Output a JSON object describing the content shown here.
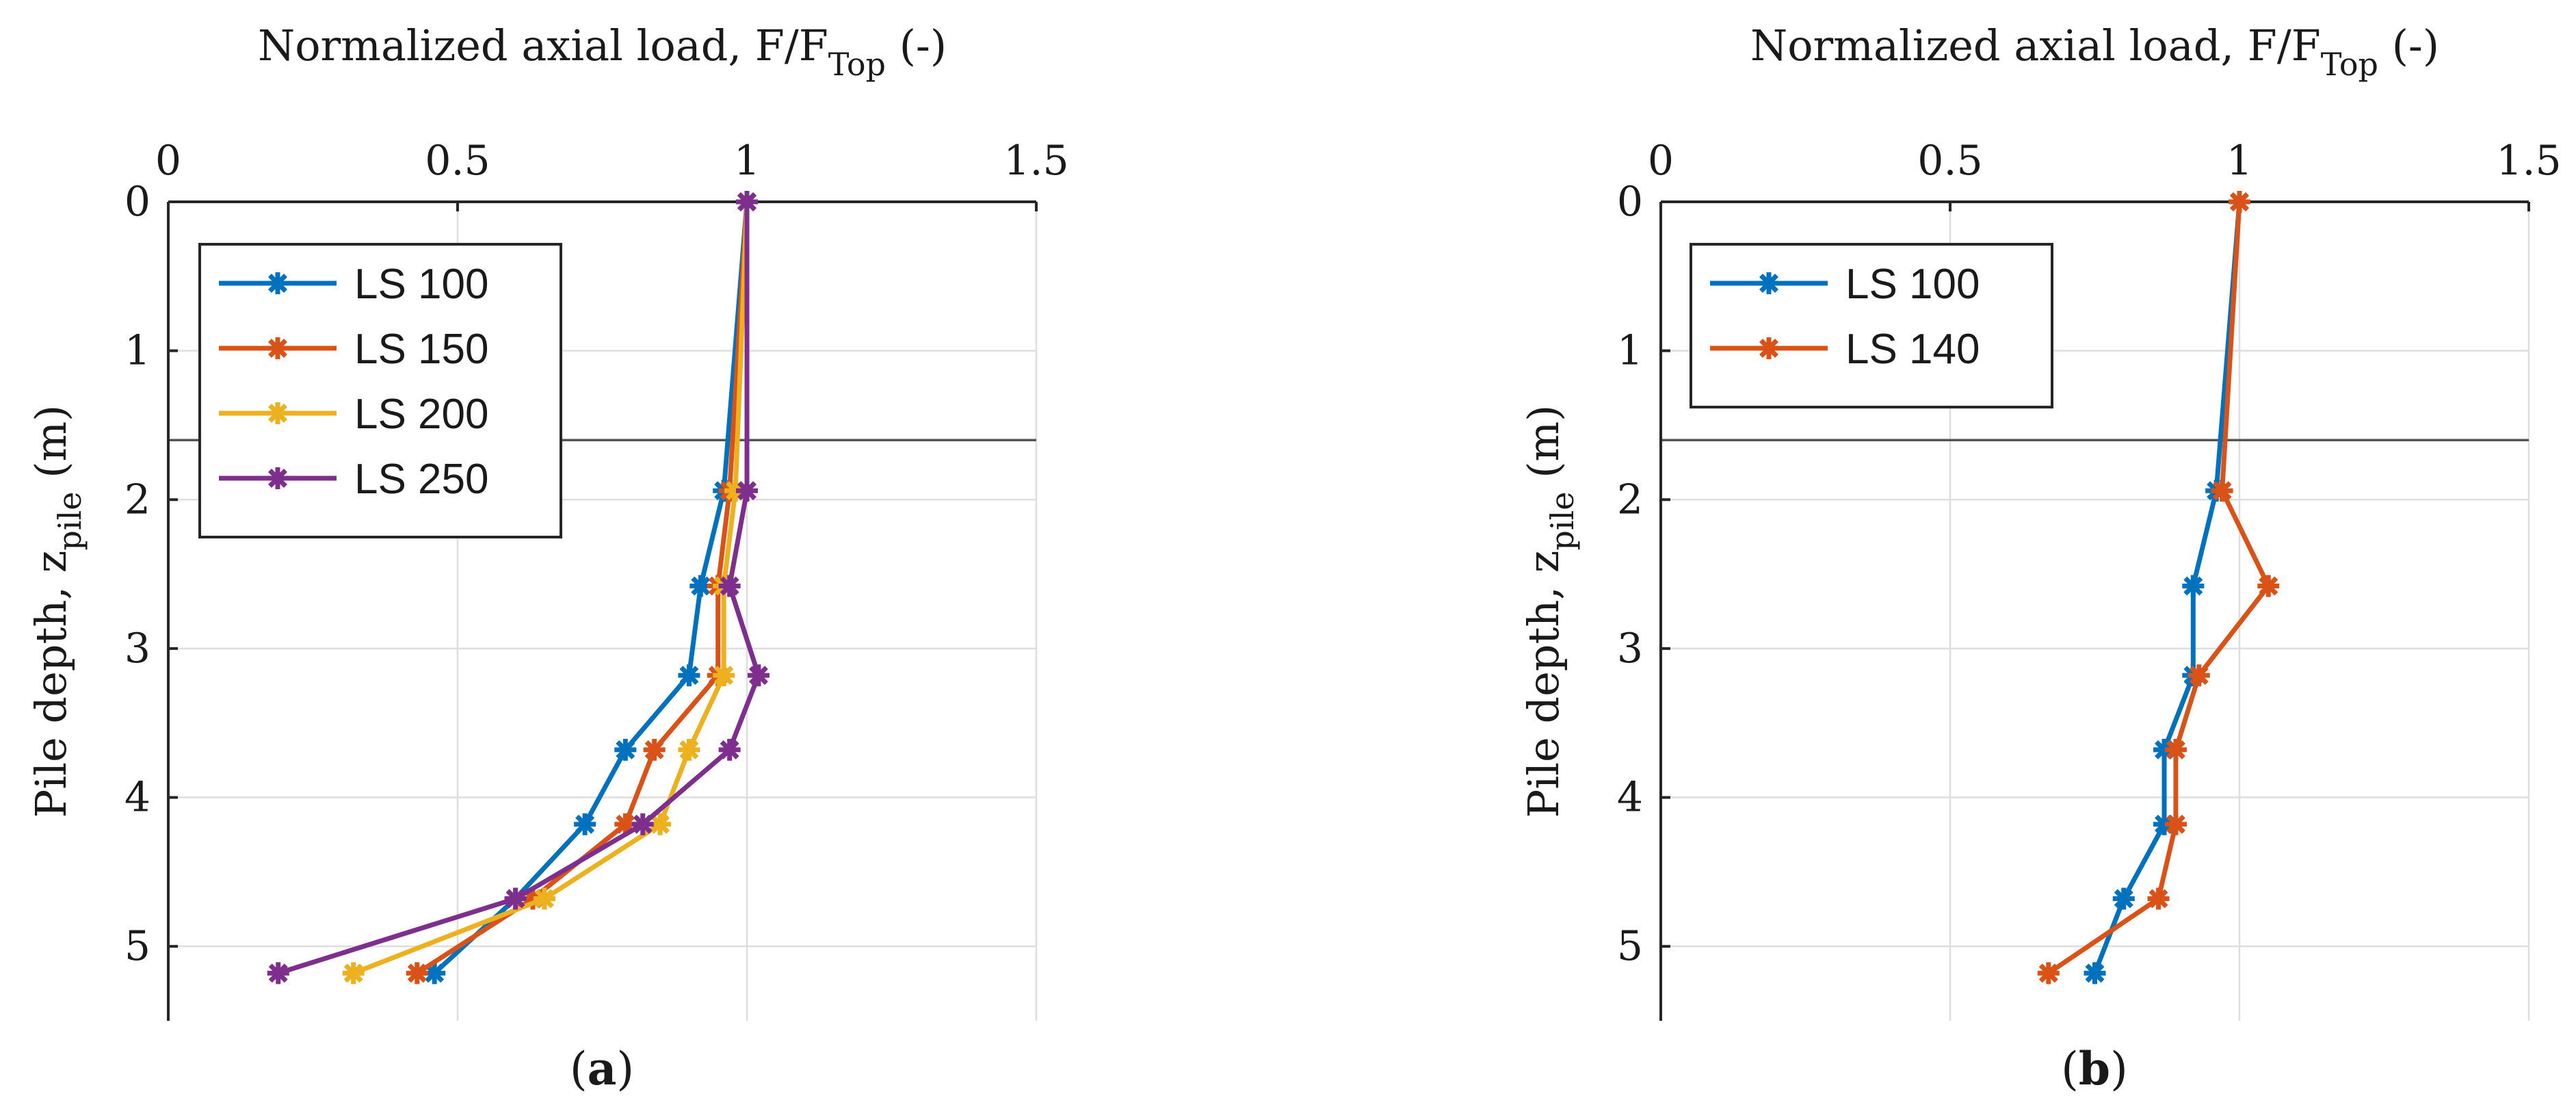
{
  "panel_labels": [
    "(a)",
    "(b)"
  ],
  "chart_data": [
    {
      "type": "line",
      "panel": "a",
      "xlabel": "Normalized axial load, F/F",
      "xlabel_sub": "Top",
      "xlabel_tail": " (-)",
      "ylabel": "Pile depth, z",
      "ylabel_sub": "pile",
      "ylabel_tail": " (m)",
      "xlim": [
        0,
        1.5
      ],
      "ylim": [
        5.5,
        0
      ],
      "xticks": [
        0,
        0.5,
        1,
        1.5
      ],
      "xtick_labels": [
        "0",
        "0.5",
        "1",
        "1.5"
      ],
      "yticks": [
        0,
        1,
        2,
        3,
        4,
        5
      ],
      "ytick_labels": [
        "0",
        "1",
        "2",
        "3",
        "4",
        "5"
      ],
      "grid": true,
      "reference_line_depth": 1.6,
      "legend_position": "top-left",
      "series": [
        {
          "name": "LS 100",
          "color": "#0072BD",
          "x": [
            1.0,
            0.96,
            0.92,
            0.9,
            0.79,
            0.72,
            0.6,
            0.46
          ],
          "y": [
            0,
            1.94,
            2.58,
            3.18,
            3.68,
            4.18,
            4.68,
            5.18
          ]
        },
        {
          "name": "LS 150",
          "color": "#D95319",
          "x": [
            1.0,
            0.97,
            0.95,
            0.95,
            0.84,
            0.79,
            0.63,
            0.43
          ],
          "y": [
            0,
            1.94,
            2.58,
            3.18,
            3.68,
            4.18,
            4.68,
            5.18
          ]
        },
        {
          "name": "LS 200",
          "color": "#EDB120",
          "x": [
            1.0,
            0.98,
            0.96,
            0.96,
            0.9,
            0.85,
            0.65,
            0.32
          ],
          "y": [
            0,
            1.94,
            2.58,
            3.18,
            3.68,
            4.18,
            4.68,
            5.18
          ]
        },
        {
          "name": "LS 250",
          "color": "#7E2F8E",
          "x": [
            1.0,
            1.0,
            0.97,
            1.02,
            0.97,
            0.82,
            0.6,
            0.19
          ],
          "y": [
            0,
            1.94,
            2.58,
            3.18,
            3.68,
            4.18,
            4.68,
            5.18
          ]
        }
      ]
    },
    {
      "type": "line",
      "panel": "b",
      "xlabel": "Normalized axial load, F/F",
      "xlabel_sub": "Top",
      "xlabel_tail": " (-)",
      "ylabel": "Pile depth, z",
      "ylabel_sub": "pile",
      "ylabel_tail": " (m)",
      "xlim": [
        0,
        1.5
      ],
      "ylim": [
        5.5,
        0
      ],
      "xticks": [
        0,
        0.5,
        1,
        1.5
      ],
      "xtick_labels": [
        "0",
        "0.5",
        "1",
        "1.5"
      ],
      "yticks": [
        0,
        1,
        2,
        3,
        4,
        5
      ],
      "ytick_labels": [
        "0",
        "1",
        "2",
        "3",
        "4",
        "5"
      ],
      "grid": true,
      "reference_line_depth": 1.6,
      "legend_position": "top-left",
      "series": [
        {
          "name": "LS 100",
          "color": "#0072BD",
          "x": [
            1.0,
            0.96,
            0.92,
            0.92,
            0.87,
            0.87,
            0.8,
            0.75
          ],
          "y": [
            0,
            1.94,
            2.58,
            3.18,
            3.68,
            4.18,
            4.68,
            5.18
          ]
        },
        {
          "name": "LS 140",
          "color": "#D95319",
          "x": [
            1.0,
            0.97,
            1.05,
            0.93,
            0.89,
            0.89,
            0.86,
            0.67
          ],
          "y": [
            0,
            1.94,
            2.58,
            3.18,
            3.68,
            4.18,
            4.68,
            5.18
          ]
        }
      ]
    }
  ]
}
